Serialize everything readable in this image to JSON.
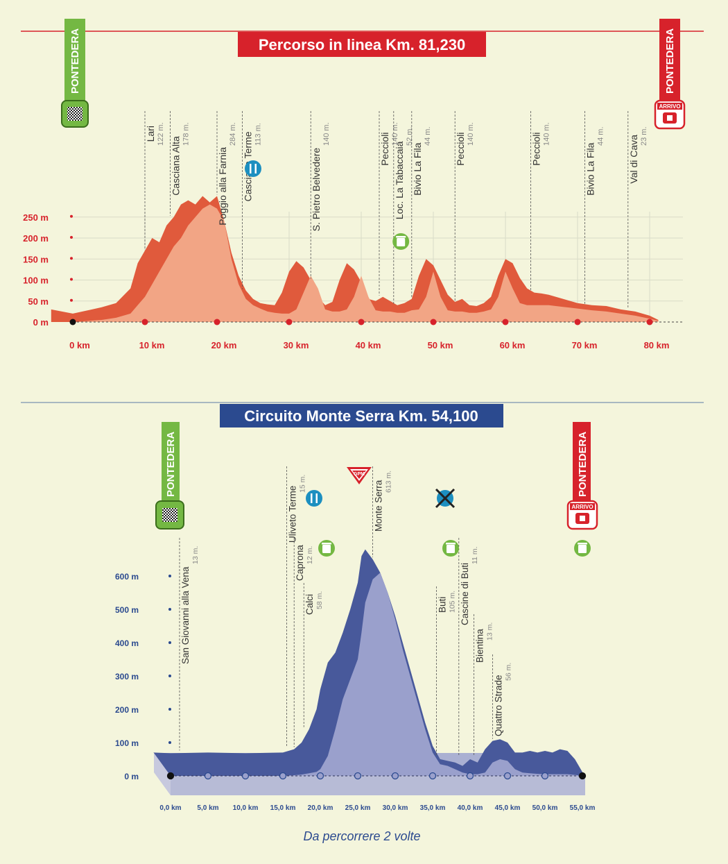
{
  "colors": {
    "background": "#f4f5dc",
    "red": "#d7222b",
    "red_light": "#f2a585",
    "red_dark": "#e05a3c",
    "blue": "#2b4a8f",
    "blue_dark": "#48599b",
    "blue_light": "#9aa0cc",
    "green": "#74b843",
    "teal": "#1c8fc0"
  },
  "chart_data": [
    {
      "type": "area",
      "title": "Percorso in linea Km. 81,230",
      "start_label": "PONTEDERA",
      "finish_label": "PONTEDERA",
      "finish_badge": "ARRIVO",
      "x_ticks": [
        "0 km",
        "10 km",
        "20 km",
        "30 km",
        "40 km",
        "50 km",
        "60 km",
        "70 km",
        "80 km"
      ],
      "x_tick_values": [
        0,
        10,
        20,
        30,
        40,
        50,
        60,
        70,
        80
      ],
      "y_ticks": [
        "0 m",
        "50 m",
        "100 m",
        "150 m",
        "200 m",
        "250 m"
      ],
      "y_tick_values": [
        0,
        50,
        100,
        150,
        200,
        250
      ],
      "xlim": [
        -3,
        84
      ],
      "ylim": [
        0,
        300
      ],
      "profile_km": [
        -3,
        0,
        4,
        6,
        8,
        9,
        10,
        11,
        12,
        13,
        14,
        15,
        16,
        17,
        18,
        19,
        20,
        21,
        22,
        23,
        24,
        25,
        26,
        27,
        28,
        29,
        30,
        31,
        32,
        33,
        34,
        35,
        36,
        37,
        38,
        39,
        40,
        41,
        42,
        43,
        44,
        45,
        46,
        47,
        48,
        49,
        50,
        51,
        52,
        53,
        54,
        55,
        56,
        57,
        58,
        59,
        60,
        61,
        62,
        63,
        64,
        65,
        66,
        67,
        68,
        69,
        70,
        72,
        74,
        76,
        78,
        80,
        81.2
      ],
      "profile_m": [
        30,
        20,
        35,
        45,
        80,
        140,
        170,
        200,
        190,
        230,
        250,
        280,
        290,
        280,
        300,
        285,
        300,
        240,
        165,
        110,
        75,
        55,
        45,
        42,
        40,
        70,
        120,
        145,
        130,
        100,
        60,
        40,
        48,
        100,
        140,
        125,
        95,
        55,
        50,
        60,
        50,
        40,
        45,
        55,
        110,
        150,
        135,
        100,
        65,
        48,
        55,
        40,
        38,
        45,
        60,
        110,
        150,
        140,
        105,
        80,
        70,
        68,
        65,
        60,
        55,
        50,
        45,
        40,
        38,
        30,
        25,
        15,
        5
      ],
      "light_profile_m": [
        0,
        0,
        5,
        10,
        20,
        40,
        60,
        90,
        120,
        150,
        180,
        200,
        230,
        250,
        270,
        280,
        270,
        240,
        150,
        90,
        55,
        40,
        32,
        25,
        22,
        20,
        20,
        30,
        70,
        110,
        80,
        30,
        25,
        25,
        30,
        60,
        110,
        60,
        28,
        25,
        25,
        22,
        22,
        28,
        30,
        60,
        120,
        60,
        28,
        25,
        25,
        22,
        22,
        25,
        30,
        60,
        120,
        80,
        45,
        40,
        40,
        40,
        40,
        38,
        36,
        34,
        32,
        28,
        25,
        20,
        15,
        8,
        3
      ],
      "waypoints": [
        {
          "name": "Lari",
          "alt": "122 m.",
          "km": 10
        },
        {
          "name": "Casciana Alta",
          "alt": "178 m.",
          "km": 13.5
        },
        {
          "name": "Poggio alla Farnia",
          "alt": "284 m.",
          "km": 20
        },
        {
          "name": "Casciana Terme",
          "alt": "113 m.",
          "km": 23.5
        },
        {
          "name": "S. Pietro Belvedere",
          "alt": "140 m.",
          "km": 33
        },
        {
          "name": "Peccioli",
          "alt": "140 m.",
          "km": 42.5
        },
        {
          "name": "Loc. La Tabaccaia",
          "alt": "52 m.",
          "km": 44.5
        },
        {
          "name": "Bivio La Fila",
          "alt": "44 m.",
          "km": 47
        },
        {
          "name": "Peccioli",
          "alt": "140 m.",
          "km": 53
        },
        {
          "name": "Peccioli",
          "alt": "140 m.",
          "km": 63.5
        },
        {
          "name": "Bivio La Fila",
          "alt": "44 m.",
          "km": 71
        },
        {
          "name": "Val di Cava",
          "alt": "23 m.",
          "km": 77
        }
      ],
      "icons": [
        {
          "name": "food-icon",
          "km": 25
        },
        {
          "name": "trash-bin-icon",
          "km": 45.5
        }
      ]
    },
    {
      "type": "area",
      "title": "Circuito Monte Serra Km. 54,100",
      "subtitle": "Da percorrere 2 volte",
      "start_label": "PONTEDERA",
      "finish_label": "PONTEDERA",
      "finish_badge": "ARRIVO",
      "gpm_label": "GPM",
      "x_ticks": [
        "0,0 km",
        "5,0 km",
        "10,0 km",
        "15,0 km",
        "20,0 km",
        "25,0 km",
        "30,0 km",
        "35,0 km",
        "40,0 km",
        "45,0 km",
        "50,0 km",
        "55,0 km"
      ],
      "x_tick_values": [
        0,
        5,
        10,
        15,
        20,
        25,
        30,
        35,
        40,
        45,
        50,
        55
      ],
      "y_ticks": [
        "0 m",
        "100 m",
        "200 m",
        "300 m",
        "400 m",
        "500 m",
        "600 m"
      ],
      "y_tick_values": [
        0,
        100,
        200,
        300,
        400,
        500,
        600
      ],
      "xlim": [
        -2.3,
        55.3
      ],
      "ylim": [
        0,
        700
      ],
      "profile_km": [
        -2.3,
        0,
        5,
        10,
        15,
        16.5,
        17.5,
        18.5,
        19.5,
        20,
        21,
        22,
        23,
        24,
        25,
        25.5,
        26,
        27,
        28,
        29,
        30,
        31,
        32,
        33,
        34,
        35,
        36,
        37,
        38,
        39,
        40,
        41,
        42,
        43,
        44,
        45,
        46,
        47,
        48,
        49,
        50,
        51,
        52,
        53,
        54,
        55.3
      ],
      "profile_m": [
        70,
        68,
        70,
        68,
        70,
        80,
        100,
        140,
        200,
        260,
        340,
        370,
        430,
        500,
        580,
        660,
        680,
        650,
        610,
        550,
        480,
        400,
        320,
        240,
        160,
        90,
        50,
        45,
        40,
        30,
        50,
        40,
        80,
        105,
        110,
        100,
        70,
        70,
        75,
        70,
        75,
        70,
        80,
        75,
        50,
        0
      ],
      "light_profile_m": [
        0,
        0,
        0,
        0,
        0,
        2,
        4,
        8,
        12,
        20,
        60,
        140,
        230,
        290,
        350,
        430,
        520,
        590,
        610,
        550,
        470,
        380,
        300,
        220,
        140,
        70,
        35,
        30,
        20,
        10,
        5,
        5,
        10,
        40,
        50,
        45,
        20,
        10,
        8,
        6,
        5,
        5,
        5,
        5,
        3,
        0
      ],
      "waypoints": [
        {
          "name": "San Giovanni alla Vena",
          "alt": "13 m.",
          "km": 1.2
        },
        {
          "name": "Uliveto Terme",
          "alt": "15 m.",
          "km": 15.5
        },
        {
          "name": "Caprona",
          "alt": "12 m.",
          "km": 16.5
        },
        {
          "name": "Calci",
          "alt": "58 m.",
          "km": 17.8
        },
        {
          "name": "Monte Serra",
          "alt": "613 m.",
          "km": 27
        },
        {
          "name": "Buti",
          "alt": "105 m.",
          "km": 35.5
        },
        {
          "name": "Cascine di Buti",
          "alt": "11 m.",
          "km": 38.5
        },
        {
          "name": "Bientina",
          "alt": "13 m.",
          "km": 40.5
        },
        {
          "name": "Quattro Strade",
          "alt": "56 m.",
          "km": 43
        }
      ],
      "icons": [
        {
          "name": "food-icon",
          "km": 19
        },
        {
          "name": "trash-bin-icon",
          "km": 20.7
        },
        {
          "name": "no-food-icon",
          "km": 36.5
        },
        {
          "name": "trash-bin-icon",
          "km": 37.5
        },
        {
          "name": "trash-bin-icon",
          "km": 55.3
        }
      ]
    }
  ]
}
